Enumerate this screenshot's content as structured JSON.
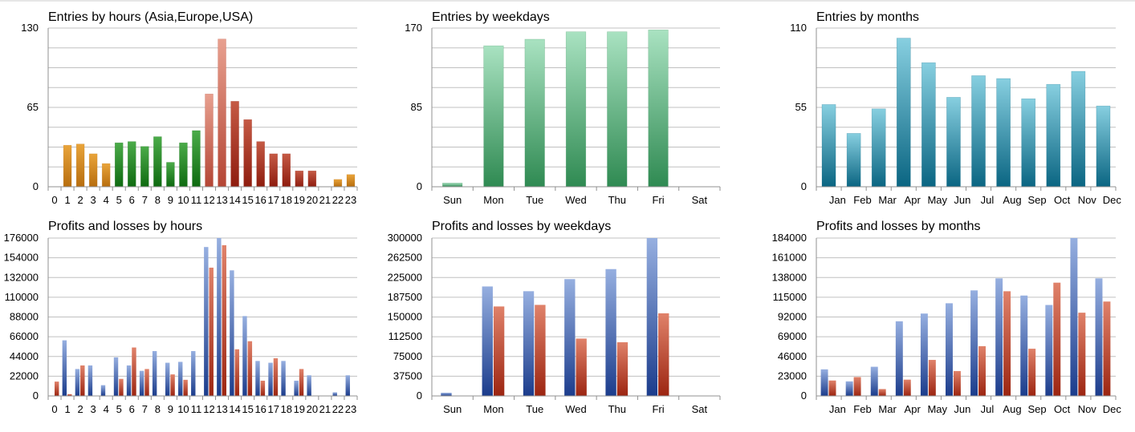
{
  "colors": {
    "orange": [
      "#e9a43a",
      "#b76d0e"
    ],
    "green": [
      "#4bab49",
      "#0e6a10"
    ],
    "salmon": [
      "#e8a08f",
      "#b44534"
    ],
    "darkred": [
      "#c55a45",
      "#8e1c0e"
    ],
    "mint": [
      "#a9e2c1",
      "#2f8a52"
    ],
    "teal": [
      "#87cfe0",
      "#0a6582"
    ],
    "blue": [
      "#96afe0",
      "#1b3c8c"
    ],
    "red": [
      "#e0826a",
      "#9c2511"
    ],
    "grid": "#c0c0c0",
    "axis": "#909090"
  },
  "chart_data": [
    {
      "id": "entries-hours",
      "type": "bar",
      "title": "Entries by hours (Asia,Europe,USA)",
      "categories": [
        "0",
        "1",
        "2",
        "3",
        "4",
        "5",
        "6",
        "7",
        "8",
        "9",
        "10",
        "11",
        "12",
        "13",
        "14",
        "15",
        "16",
        "17",
        "18",
        "19",
        "20",
        "21",
        "22",
        "23"
      ],
      "values": [
        0,
        34,
        35,
        27,
        19,
        36,
        37,
        33,
        41,
        20,
        36,
        46,
        76,
        121,
        70,
        55,
        37,
        27,
        27,
        13,
        13,
        0,
        6,
        10
      ],
      "point_colors": [
        "orange",
        "orange",
        "orange",
        "orange",
        "orange",
        "green",
        "green",
        "green",
        "green",
        "green",
        "green",
        "green",
        "salmon",
        "salmon",
        "darkred",
        "darkred",
        "darkred",
        "darkred",
        "darkred",
        "darkred",
        "darkred",
        "orange",
        "orange",
        "orange"
      ],
      "ylim": [
        0,
        130
      ],
      "y_ticks": [
        0,
        65,
        130
      ],
      "grid_lines": 8,
      "bar_width_ratio": 0.62,
      "tick_label_offset": 0
    },
    {
      "id": "entries-weekdays",
      "type": "bar",
      "title": "Entries by weekdays",
      "categories": [
        "Sun",
        "Mon",
        "Tue",
        "Wed",
        "Thu",
        "Fri",
        "Sat"
      ],
      "values": [
        4,
        151,
        158,
        166,
        166,
        168,
        0
      ],
      "point_colors": [
        "mint",
        "mint",
        "mint",
        "mint",
        "mint",
        "mint",
        "mint"
      ],
      "ylim": [
        0,
        170
      ],
      "y_ticks": [
        0,
        85,
        170
      ],
      "grid_lines": 8,
      "bar_width_ratio": 0.48,
      "tick_label_offset": 0
    },
    {
      "id": "entries-months",
      "type": "bar",
      "title": "Entries by months",
      "categories": [
        "Jan",
        "Feb",
        "Mar",
        "Apr",
        "May",
        "Jun",
        "Jul",
        "Aug",
        "Sep",
        "Oct",
        "Nov",
        "Dec"
      ],
      "values": [
        57,
        37,
        54,
        103,
        86,
        62,
        77,
        75,
        61,
        71,
        80,
        56
      ],
      "point_colors": [
        "teal",
        "teal",
        "teal",
        "teal",
        "teal",
        "teal",
        "teal",
        "teal",
        "teal",
        "teal",
        "teal",
        "teal"
      ],
      "ylim": [
        0,
        110
      ],
      "y_ticks": [
        0,
        55,
        110
      ],
      "grid_lines": 8,
      "bar_width_ratio": 0.55,
      "tick_label_offset": 0.35
    },
    {
      "id": "pl-hours",
      "type": "bar",
      "title": "Profits and losses by hours",
      "categories": [
        "0",
        "1",
        "2",
        "3",
        "4",
        "5",
        "6",
        "7",
        "8",
        "9",
        "10",
        "11",
        "12",
        "13",
        "14",
        "15",
        "16",
        "17",
        "18",
        "19",
        "20",
        "21",
        "22",
        "23"
      ],
      "series": [
        {
          "color": "blue",
          "values": [
            0,
            62000,
            30000,
            34000,
            12000,
            43000,
            34000,
            28000,
            50000,
            37000,
            38000,
            50000,
            166000,
            176000,
            140000,
            89000,
            39000,
            37000,
            39000,
            17000,
            23000,
            0,
            4000,
            23000
          ]
        },
        {
          "color": "red",
          "values": [
            16000,
            2000,
            34000,
            0,
            0,
            19000,
            54000,
            30000,
            0,
            24000,
            18000,
            0,
            143000,
            168000,
            52000,
            61000,
            17000,
            42000,
            0,
            30000,
            0,
            0,
            0,
            0
          ]
        }
      ],
      "ylim": [
        0,
        176000
      ],
      "y_ticks": [
        0,
        22000,
        44000,
        66000,
        88000,
        110000,
        132000,
        154000,
        176000
      ],
      "bar_width_ratio": 0.8,
      "tick_label_offset": 0
    },
    {
      "id": "pl-weekdays",
      "type": "bar",
      "title": "Profits and losses by weekdays",
      "categories": [
        "Sun",
        "Mon",
        "Tue",
        "Wed",
        "Thu",
        "Fri",
        "Sat"
      ],
      "series": [
        {
          "color": "blue",
          "values": [
            6000,
            208000,
            199000,
            222000,
            241000,
            300000,
            0
          ]
        },
        {
          "color": "red",
          "values": [
            0,
            170000,
            173000,
            109000,
            102000,
            157000,
            0
          ]
        }
      ],
      "ylim": [
        0,
        300000
      ],
      "y_ticks": [
        0,
        37500,
        75000,
        112500,
        150000,
        187500,
        225000,
        262500,
        300000
      ],
      "bar_width_ratio": 0.56,
      "tick_label_offset": 0
    },
    {
      "id": "pl-months",
      "type": "bar",
      "title": "Profits and losses by months",
      "categories": [
        "Jan",
        "Feb",
        "Mar",
        "Apr",
        "May",
        "Jun",
        "Jul",
        "Aug",
        "Sep",
        "Oct",
        "Nov",
        "Dec"
      ],
      "series": [
        {
          "color": "blue",
          "values": [
            31000,
            17000,
            34000,
            87000,
            96000,
            108000,
            123000,
            137000,
            117000,
            106000,
            184000,
            137000
          ]
        },
        {
          "color": "red",
          "values": [
            18000,
            22000,
            8000,
            19000,
            42000,
            29000,
            58000,
            122000,
            55000,
            132000,
            97000,
            110000
          ]
        }
      ],
      "ylim": [
        0,
        184000
      ],
      "y_ticks": [
        0,
        23000,
        46000,
        69000,
        92000,
        115000,
        138000,
        161000,
        184000
      ],
      "bar_width_ratio": 0.64,
      "tick_label_offset": 0.35
    }
  ]
}
